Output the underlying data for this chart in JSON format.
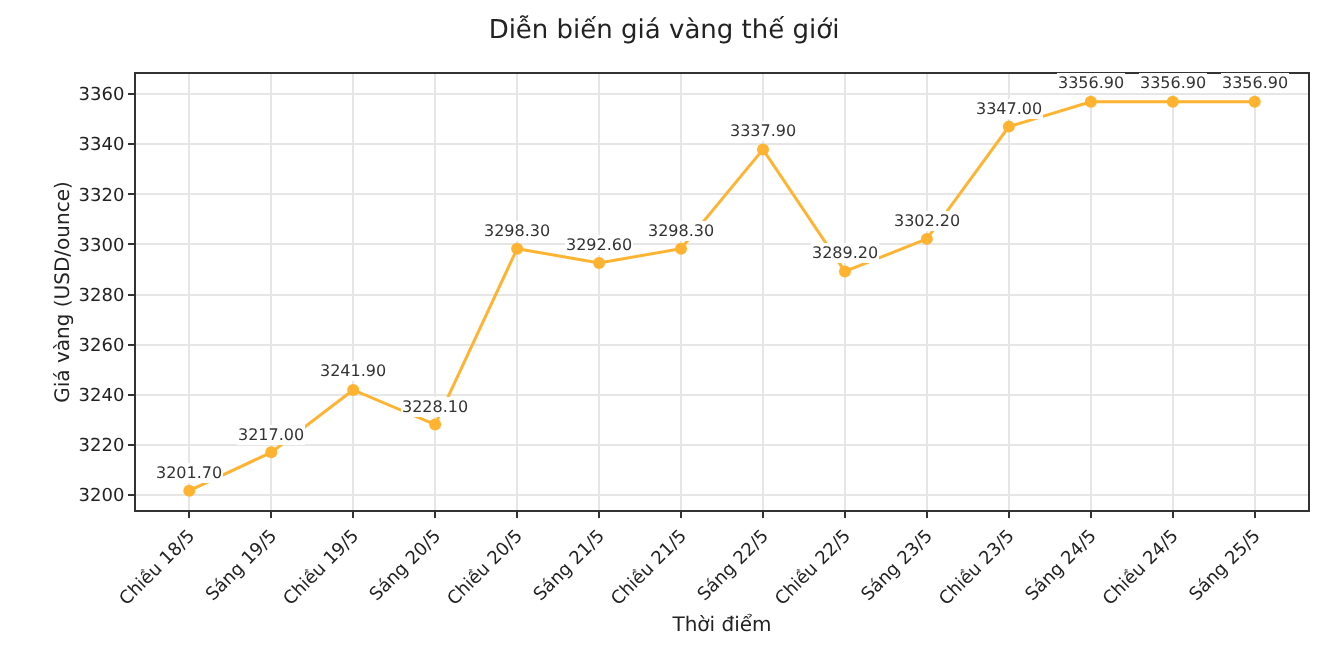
{
  "chart_data": {
    "type": "line",
    "title": "Diễn biến giá vàng thế giới",
    "xlabel": "Thời điểm",
    "ylabel": "Giá vàng (USD/ounce)",
    "categories": [
      "Chiều 18/5",
      "Sáng 19/5",
      "Chiều 19/5",
      "Sáng 20/5",
      "Chiều 20/5",
      "Sáng 21/5",
      "Chiều 21/5",
      "Sáng 22/5",
      "Chiều 22/5",
      "Sáng 23/5",
      "Chiều 23/5",
      "Sáng 24/5",
      "Chiều 24/5",
      "Sáng 25/5"
    ],
    "series": [
      {
        "color": "#ffb330",
        "values": [
          3201.7,
          3217.0,
          3241.9,
          3228.1,
          3298.3,
          3292.6,
          3298.3,
          3337.9,
          3289.2,
          3302.2,
          3347.0,
          3356.9,
          3356.9,
          3356.9
        ],
        "value_labels": [
          "3201.70",
          "3217.00",
          "3241.90",
          "3228.10",
          "3298.30",
          "3292.60",
          "3298.30",
          "3337.90",
          "3289.20",
          "3302.20",
          "3347.00",
          "3356.90",
          "3356.90",
          "3356.90"
        ]
      }
    ],
    "ylim": [
      3194,
      3368
    ],
    "yticks": [
      3200,
      3220,
      3240,
      3260,
      3280,
      3300,
      3320,
      3340,
      3360
    ],
    "grid": true,
    "marker": "circle",
    "line_style": "solid"
  }
}
